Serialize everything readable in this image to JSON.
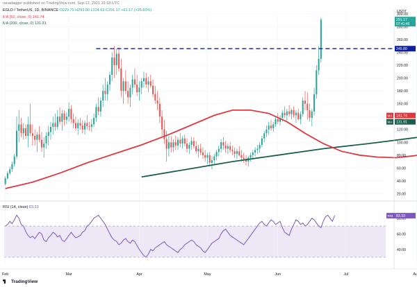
{
  "publisher": "ranadagger published on TradingView.com, Sep 12, 2021 16:18 UTC",
  "header": {
    "symbol_line": "EGLD / TetherUS, 1D, BINANCE",
    "ohlc_line": "O229.75  H293.80  L224.63  C291.17  +61.17 (+26.60%)",
    "ma50_line": "MA (50, close, 0)  141.74",
    "ma200_line": "MA (200, close, 0)  131.91"
  },
  "footer": {
    "brand": "TradingView"
  },
  "colors": {
    "up": "#26a69a",
    "down": "#ef5350",
    "ma50": "#e0383e",
    "ma200": "#1b5e4c",
    "level": "#0b1fa0",
    "rsi": "#7e57c2",
    "rsi_band": "#ede7f6",
    "price_tag": "#26a69a"
  },
  "chart_data": [
    {
      "type": "candlestick",
      "unit": "USDT",
      "y_axis_labels": [
        "300.00",
        "280.00",
        "260.00",
        "240.00",
        "220.00",
        "200.00",
        "180.00",
        "160.00",
        "140.00",
        "120.00",
        "100.00",
        "80.00",
        "60.00",
        "40.00",
        "20.00"
      ],
      "y_axis_currency": "USDT",
      "ylim": [
        15,
        300
      ],
      "x_labels": [
        "Feb",
        "Mar",
        "Apr",
        "May",
        "Jun",
        "Jul",
        "Aug",
        "Sep",
        "Oct"
      ],
      "x_label_days": [
        22,
        50,
        81,
        111,
        142,
        172,
        203,
        234,
        264
      ],
      "horizontal_level": 245.8,
      "last_price": "291.17",
      "countdown": "07:41:46",
      "ma50_label": "MA",
      "ma50_value": "141.74",
      "ma200_label": "MA",
      "ma200_value": "131.91",
      "level_label": "245.80",
      "candles": [
        [
          35,
          47,
          33,
          44
        ],
        [
          44,
          55,
          42,
          52
        ],
        [
          52,
          62,
          49,
          58
        ],
        [
          58,
          70,
          54,
          66
        ],
        [
          66,
          82,
          62,
          78
        ],
        [
          78,
          140,
          74,
          118
        ],
        [
          118,
          150,
          100,
          128
        ],
        [
          128,
          138,
          108,
          114
        ],
        [
          114,
          130,
          104,
          122
        ],
        [
          122,
          128,
          105,
          110
        ],
        [
          110,
          140,
          92,
          128
        ],
        [
          128,
          160,
          110,
          114
        ],
        [
          114,
          128,
          95,
          110
        ],
        [
          110,
          120,
          95,
          104
        ],
        [
          104,
          116,
          85,
          112
        ],
        [
          112,
          125,
          100,
          104
        ],
        [
          104,
          116,
          85,
          92
        ],
        [
          92,
          108,
          76,
          98
        ],
        [
          98,
          116,
          90,
          110
        ],
        [
          110,
          125,
          95,
          116
        ],
        [
          116,
          132,
          104,
          124
        ],
        [
          124,
          140,
          112,
          130
        ],
        [
          130,
          145,
          118,
          124
        ],
        [
          124,
          150,
          120,
          140
        ],
        [
          140,
          155,
          128,
          132
        ],
        [
          132,
          150,
          118,
          145
        ],
        [
          145,
          150,
          126,
          135
        ],
        [
          135,
          147,
          128,
          140
        ],
        [
          140,
          162,
          132,
          152
        ],
        [
          152,
          158,
          130,
          136
        ],
        [
          136,
          145,
          122,
          130
        ],
        [
          130,
          140,
          118,
          122
        ],
        [
          122,
          136,
          112,
          130
        ],
        [
          130,
          138,
          120,
          126
        ],
        [
          126,
          134,
          114,
          120
        ],
        [
          120,
          134,
          112,
          130
        ],
        [
          130,
          142,
          120,
          125
        ],
        [
          125,
          132,
          118,
          124
        ],
        [
          124,
          136,
          116,
          128
        ],
        [
          128,
          145,
          124,
          138
        ],
        [
          138,
          160,
          132,
          155
        ],
        [
          155,
          170,
          142,
          148
        ],
        [
          148,
          170,
          140,
          165
        ],
        [
          165,
          190,
          155,
          180
        ],
        [
          180,
          200,
          165,
          175
        ],
        [
          175,
          195,
          165,
          190
        ],
        [
          190,
          210,
          180,
          205
        ],
        [
          205,
          240,
          195,
          232
        ],
        [
          232,
          250,
          200,
          220
        ],
        [
          220,
          245,
          205,
          238
        ],
        [
          238,
          248,
          210,
          215
        ],
        [
          215,
          230,
          170,
          180
        ],
        [
          180,
          200,
          160,
          195
        ],
        [
          195,
          212,
          175,
          180
        ],
        [
          180,
          195,
          160,
          170
        ],
        [
          170,
          190,
          155,
          185
        ],
        [
          185,
          205,
          175,
          198
        ],
        [
          198,
          215,
          185,
          190
        ],
        [
          190,
          205,
          172,
          178
        ],
        [
          178,
          195,
          165,
          185
        ],
        [
          185,
          200,
          175,
          195
        ],
        [
          195,
          210,
          185,
          200
        ],
        [
          200,
          208,
          185,
          190
        ],
        [
          190,
          202,
          178,
          195
        ],
        [
          195,
          205,
          185,
          188
        ],
        [
          188,
          198,
          170,
          175
        ],
        [
          175,
          188,
          160,
          165
        ],
        [
          165,
          180,
          150,
          160
        ],
        [
          160,
          170,
          130,
          140
        ],
        [
          140,
          150,
          110,
          120
        ],
        [
          120,
          135,
          98,
          105
        ],
        [
          105,
          118,
          70,
          90
        ],
        [
          90,
          110,
          78,
          100
        ],
        [
          100,
          110,
          84,
          92
        ],
        [
          92,
          105,
          85,
          100
        ],
        [
          100,
          110,
          88,
          95
        ],
        [
          95,
          108,
          88,
          104
        ],
        [
          104,
          115,
          92,
          98
        ],
        [
          98,
          110,
          90,
          106
        ],
        [
          106,
          112,
          94,
          98
        ],
        [
          98,
          106,
          84,
          90
        ],
        [
          90,
          100,
          82,
          96
        ],
        [
          96,
          108,
          88,
          102
        ],
        [
          102,
          108,
          90,
          94
        ],
        [
          94,
          102,
          82,
          86
        ],
        [
          86,
          96,
          76,
          90
        ],
        [
          90,
          98,
          80,
          84
        ],
        [
          84,
          92,
          74,
          80
        ],
        [
          80,
          88,
          70,
          76
        ],
        [
          76,
          84,
          66,
          80
        ],
        [
          80,
          85,
          62,
          68
        ],
        [
          68,
          78,
          58,
          72
        ],
        [
          72,
          82,
          64,
          78
        ],
        [
          78,
          88,
          72,
          85
        ],
        [
          85,
          95,
          78,
          90
        ],
        [
          90,
          105,
          84,
          100
        ],
        [
          100,
          108,
          88,
          95
        ],
        [
          95,
          102,
          84,
          90
        ],
        [
          90,
          98,
          82,
          94
        ],
        [
          94,
          100,
          84,
          88
        ],
        [
          88,
          95,
          80,
          86
        ],
        [
          86,
          92,
          76,
          82
        ],
        [
          82,
          90,
          74,
          86
        ],
        [
          86,
          94,
          78,
          80
        ],
        [
          80,
          88,
          70,
          76
        ],
        [
          76,
          84,
          68,
          74
        ],
        [
          74,
          80,
          64,
          70
        ],
        [
          70,
          78,
          62,
          76
        ],
        [
          76,
          84,
          70,
          80
        ],
        [
          80,
          88,
          74,
          84
        ],
        [
          84,
          92,
          78,
          88
        ],
        [
          88,
          96,
          82,
          90
        ],
        [
          90,
          100,
          84,
          96
        ],
        [
          96,
          110,
          92,
          106
        ],
        [
          106,
          118,
          100,
          114
        ],
        [
          114,
          126,
          108,
          120
        ],
        [
          120,
          132,
          112,
          126
        ],
        [
          126,
          135,
          118,
          122
        ],
        [
          122,
          132,
          116,
          128
        ],
        [
          128,
          140,
          124,
          136
        ],
        [
          136,
          146,
          128,
          132
        ],
        [
          132,
          142,
          126,
          138
        ],
        [
          138,
          150,
          132,
          146
        ],
        [
          146,
          156,
          138,
          142
        ],
        [
          142,
          152,
          134,
          148
        ],
        [
          148,
          158,
          140,
          144
        ],
        [
          144,
          152,
          136,
          150
        ],
        [
          150,
          156,
          138,
          142
        ],
        [
          142,
          150,
          130,
          146
        ],
        [
          146,
          152,
          134,
          136
        ],
        [
          136,
          148,
          128,
          144
        ],
        [
          144,
          170,
          140,
          165
        ],
        [
          165,
          180,
          150,
          160
        ],
        [
          160,
          178,
          135,
          150
        ],
        [
          150,
          160,
          132,
          138
        ],
        [
          138,
          152,
          125,
          148
        ],
        [
          148,
          185,
          142,
          175
        ],
        [
          175,
          220,
          168,
          212
        ],
        [
          212,
          250,
          205,
          230
        ],
        [
          230,
          294,
          224,
          291
        ]
      ],
      "ma50": [
        [
          0,
          28
        ],
        [
          12,
          38
        ],
        [
          24,
          52
        ],
        [
          36,
          68
        ],
        [
          48,
          82
        ],
        [
          60,
          96
        ],
        [
          72,
          112
        ],
        [
          84,
          130
        ],
        [
          92,
          142
        ],
        [
          100,
          150
        ],
        [
          108,
          150
        ],
        [
          116,
          145
        ],
        [
          124,
          132
        ],
        [
          132,
          114
        ],
        [
          140,
          98
        ],
        [
          148,
          86
        ],
        [
          156,
          80
        ],
        [
          164,
          77
        ],
        [
          172,
          76
        ],
        [
          180,
          79
        ],
        [
          190,
          86
        ],
        [
          200,
          96
        ],
        [
          208,
          110
        ],
        [
          216,
          126
        ],
        [
          222,
          141.74
        ]
      ],
      "ma200_start_day": 60,
      "ma200": [
        [
          60,
          46
        ],
        [
          80,
          58
        ],
        [
          100,
          70
        ],
        [
          120,
          80
        ],
        [
          140,
          90
        ],
        [
          160,
          98
        ],
        [
          180,
          107
        ],
        [
          200,
          116
        ],
        [
          210,
          121
        ],
        [
          222,
          131.91
        ]
      ]
    },
    {
      "type": "line",
      "title": "RSI (14, close)",
      "value_label": "RSI",
      "last_value": "83.33",
      "y_axis_labels": [
        "80.00",
        "60.00",
        "40.00"
      ],
      "ylim": [
        22,
        95
      ],
      "band": [
        30,
        70
      ],
      "values": [
        70,
        72,
        76,
        73,
        78,
        84,
        80,
        72,
        70,
        63,
        58,
        55,
        57,
        54,
        58,
        62,
        60,
        52,
        50,
        55,
        58,
        62,
        60,
        56,
        58,
        52,
        50,
        54,
        58,
        62,
        58,
        55,
        56,
        58,
        62,
        64,
        70,
        72,
        76,
        80,
        82,
        84,
        80,
        76,
        72,
        66,
        60,
        55,
        52,
        50,
        46,
        48,
        52,
        54,
        50,
        48,
        52,
        50,
        45,
        40,
        36,
        32,
        30,
        34,
        40,
        38,
        42,
        44,
        46,
        48,
        50,
        46,
        44,
        42,
        40,
        38,
        36,
        40,
        42,
        46,
        48,
        50,
        52,
        50,
        46,
        44,
        42,
        38,
        36,
        40,
        44,
        48,
        50,
        52,
        54,
        60,
        64,
        66,
        62,
        58,
        56,
        54,
        52,
        50,
        48,
        46,
        50,
        54,
        58,
        62,
        66,
        70,
        74,
        76,
        72,
        70,
        74,
        78,
        76,
        72,
        74,
        76,
        68,
        62,
        60,
        58,
        66,
        72,
        78,
        76,
        72,
        74,
        70,
        72,
        76,
        80,
        78,
        74,
        70,
        68,
        76,
        82,
        84,
        80,
        76,
        83.33
      ]
    }
  ]
}
